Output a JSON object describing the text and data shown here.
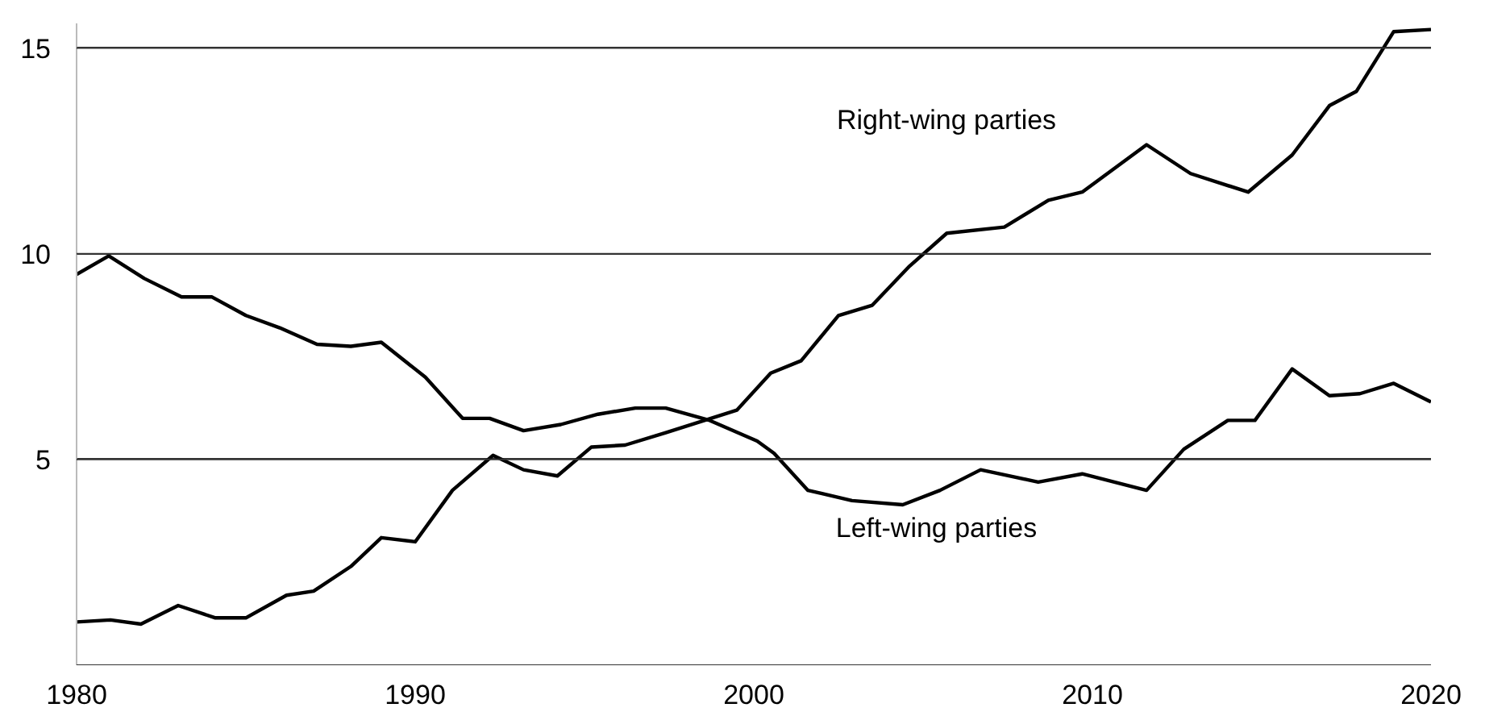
{
  "chart_data": {
    "type": "line",
    "xlim": [
      1980,
      2020
    ],
    "ylim": [
      0,
      15.6
    ],
    "xticks": [
      1980,
      1990,
      2000,
      2010,
      2020
    ],
    "yticks": [
      {
        "value": 0,
        "label": null
      },
      5,
      10,
      15
    ],
    "grid": "y",
    "line_style": "solid",
    "marker": "none",
    "series": [
      {
        "name": "Left-wing parties",
        "color": "#000000",
        "x": [
          1980,
          1980.95,
          1982.0,
          1983.1,
          1984.0,
          1985.0,
          1986.0,
          1987.1,
          1988.1,
          1989.0,
          1990.3,
          1991.4,
          1992.2,
          1993.2,
          1994.3,
          1995.4,
          1996.5,
          1997.4,
          1998.7,
          2000.1,
          2000.6,
          2001.6,
          2002.9,
          2004.4,
          2005.5,
          2006.7,
          2008.4,
          2009.7,
          2011.6,
          2012.7,
          2014.0,
          2014.8,
          2015.9,
          2017.0,
          2017.9,
          2018.9,
          2020
        ],
        "values": [
          9.5,
          9.95,
          9.4,
          8.95,
          8.95,
          8.5,
          8.2,
          7.8,
          7.75,
          7.85,
          7.0,
          6.0,
          6.0,
          5.7,
          5.85,
          6.1,
          6.25,
          6.25,
          5.95,
          5.45,
          5.15,
          4.25,
          4.0,
          3.9,
          4.25,
          4.75,
          4.45,
          4.65,
          4.25,
          5.25,
          5.95,
          5.95,
          7.2,
          6.55,
          6.6,
          6.85,
          6.4
        ]
      },
      {
        "name": "Right-wing parties",
        "color": "#000000",
        "x": [
          1980,
          1981,
          1981.9,
          1983,
          1984.1,
          1985.0,
          1986.2,
          1987,
          1988.1,
          1989,
          1990,
          1991.1,
          1992.3,
          1993.2,
          1994.2,
          1995.2,
          1996.2,
          1997.4,
          1999.5,
          2000.5,
          2001.4,
          2002.5,
          2003.5,
          2004.6,
          2005.7,
          2007.4,
          2008.7,
          2009.7,
          2011.6,
          2012.9,
          2014.6,
          2015.9,
          2017.0,
          2017.8,
          2018.9,
          2020
        ],
        "values": [
          1.05,
          1.1,
          1.0,
          1.45,
          1.15,
          1.15,
          1.7,
          1.8,
          2.4,
          3.1,
          3.0,
          4.25,
          5.1,
          4.75,
          4.6,
          5.3,
          5.35,
          5.65,
          6.2,
          7.1,
          7.4,
          8.5,
          8.75,
          9.7,
          10.5,
          10.65,
          11.3,
          11.5,
          12.65,
          11.95,
          11.5,
          12.4,
          13.6,
          13.95,
          15.4,
          15.45
        ]
      }
    ]
  }
}
